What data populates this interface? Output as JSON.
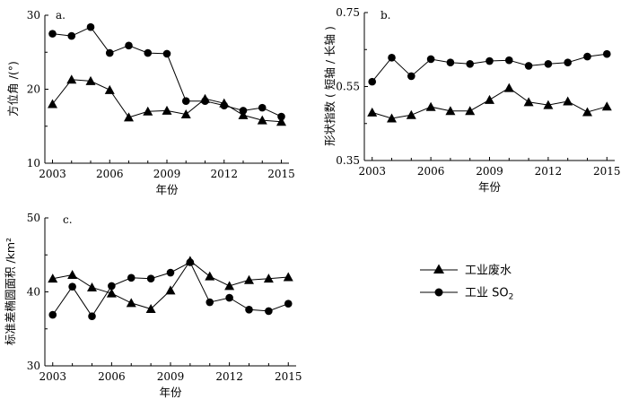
{
  "chart_data": [
    {
      "type": "line",
      "panel_label": "a.",
      "x": [
        2003,
        2004,
        2005,
        2006,
        2007,
        2008,
        2009,
        2010,
        2011,
        2012,
        2013,
        2014,
        2015
      ],
      "xticks": [
        "2003",
        "2006",
        "2009",
        "2012",
        "2015"
      ],
      "xtick_values": [
        2003,
        2006,
        2009,
        2012,
        2015
      ],
      "xlabel": "年份",
      "ylabel": "方位角 /(°)",
      "ylim": [
        10,
        30
      ],
      "yticks": [
        "10",
        "20",
        "30"
      ],
      "ytick_values": [
        10,
        20,
        30
      ],
      "series": [
        {
          "name": "工业废水",
          "marker": "triangle",
          "values": [
            18.0,
            21.3,
            21.1,
            19.9,
            16.2,
            17.0,
            17.1,
            16.6,
            18.7,
            18.1,
            16.5,
            15.8,
            15.6
          ]
        },
        {
          "name": "工业 SO2",
          "marker": "circle",
          "values": [
            27.5,
            27.2,
            28.4,
            24.9,
            25.9,
            24.9,
            24.8,
            18.4,
            18.4,
            17.8,
            17.1,
            17.5,
            16.3
          ]
        }
      ]
    },
    {
      "type": "line",
      "panel_label": "b.",
      "x": [
        2003,
        2004,
        2005,
        2006,
        2007,
        2008,
        2009,
        2010,
        2011,
        2012,
        2013,
        2014,
        2015
      ],
      "xticks": [
        "2003",
        "2006",
        "2009",
        "2012",
        "2015"
      ],
      "xtick_values": [
        2003,
        2006,
        2009,
        2012,
        2015
      ],
      "xlabel": "年份",
      "ylabel": "形状指数 ( 短轴 / 长轴 )",
      "ylim": [
        0.35,
        0.75
      ],
      "yticks": [
        "0.35",
        "0.55",
        "0.75"
      ],
      "ytick_values": [
        0.35,
        0.55,
        0.75
      ],
      "series": [
        {
          "name": "工业废水",
          "marker": "triangle",
          "values": [
            0.48,
            0.464,
            0.473,
            0.495,
            0.484,
            0.484,
            0.514,
            0.546,
            0.508,
            0.5,
            0.51,
            0.481,
            0.496
          ]
        },
        {
          "name": "工业 SO2",
          "marker": "circle",
          "values": [
            0.563,
            0.628,
            0.578,
            0.624,
            0.615,
            0.611,
            0.619,
            0.621,
            0.606,
            0.611,
            0.615,
            0.631,
            0.638
          ]
        }
      ]
    },
    {
      "type": "line",
      "panel_label": "c.",
      "x": [
        2003,
        2004,
        2005,
        2006,
        2007,
        2008,
        2009,
        2010,
        2011,
        2012,
        2013,
        2014,
        2015
      ],
      "xticks": [
        "2003",
        "2006",
        "2009",
        "2012",
        "2015"
      ],
      "xtick_values": [
        2003,
        2006,
        2009,
        2012,
        2015
      ],
      "xlabel": "年份",
      "ylabel": "标准差椭圆面积 /km²",
      "ylim": [
        30,
        50
      ],
      "yticks": [
        "30",
        "40",
        "50"
      ],
      "ytick_values": [
        30,
        40,
        50
      ],
      "series": [
        {
          "name": "工业废水",
          "marker": "triangle",
          "values": [
            41.8,
            42.3,
            40.6,
            39.8,
            38.5,
            37.7,
            40.2,
            44.2,
            42.1,
            40.8,
            41.6,
            41.8,
            42.0
          ]
        },
        {
          "name": "工业 SO2",
          "marker": "circle",
          "values": [
            36.9,
            40.7,
            36.7,
            40.8,
            41.9,
            41.8,
            42.6,
            44.0,
            38.6,
            39.2,
            37.6,
            37.4,
            38.4
          ]
        }
      ]
    }
  ],
  "legend": [
    {
      "label": "工业废水",
      "marker": "triangle"
    },
    {
      "label": "工业 SO",
      "sub": "2",
      "marker": "circle"
    }
  ]
}
